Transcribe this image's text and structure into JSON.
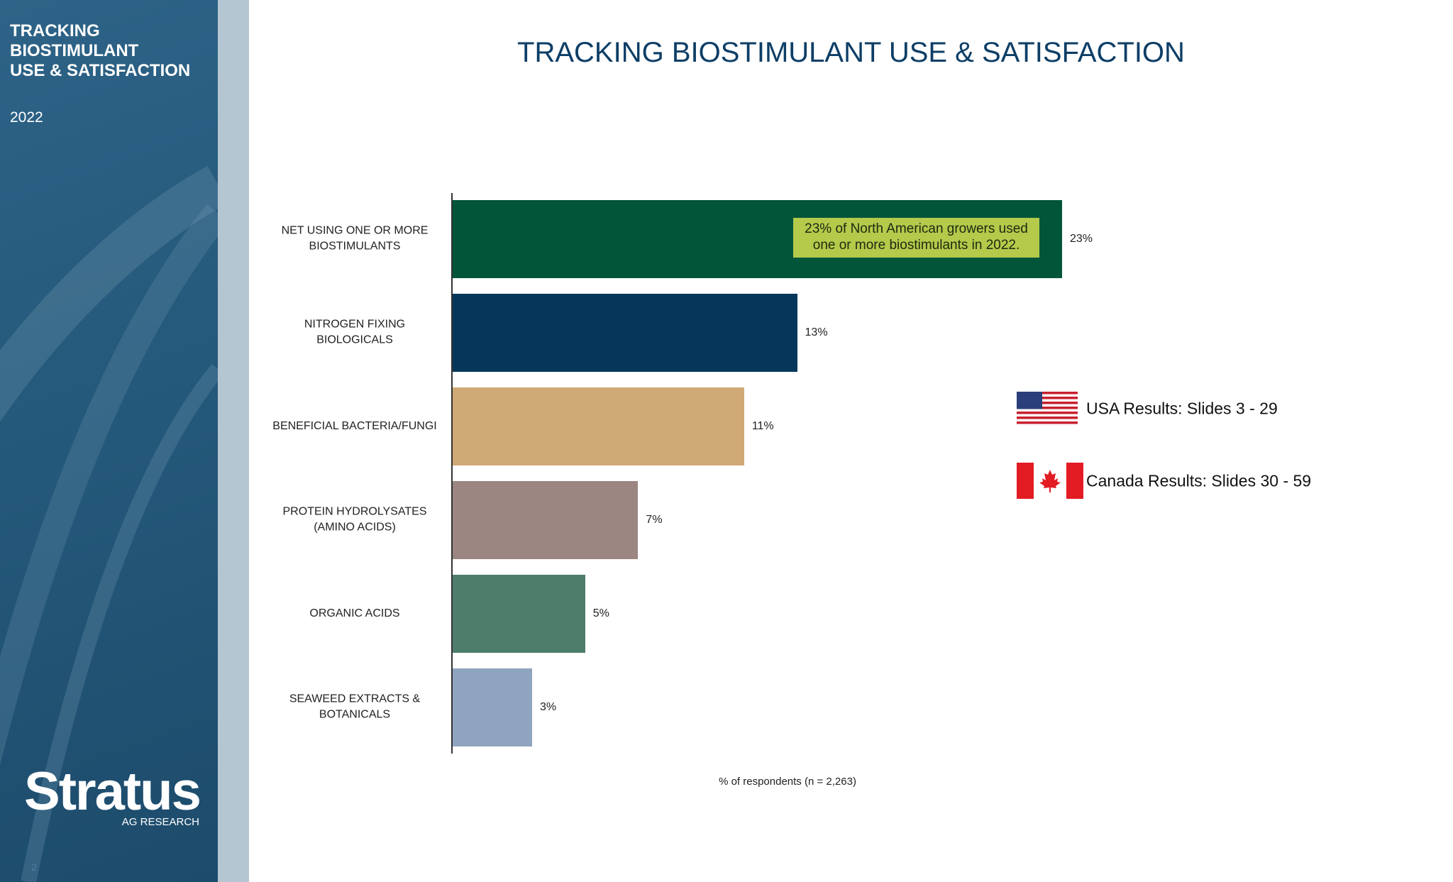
{
  "sidebar": {
    "title_lines": [
      "TRACKING",
      "BIOSTIMULANT",
      "USE & SATISFACTION"
    ],
    "year": "2022",
    "logo": "Stratus",
    "logo_sub": "AG RESEARCH",
    "page": "2"
  },
  "links": [
    "USA Results: Slides 3 - 29",
    "Canada Results: Slides 30 - 59"
  ],
  "chart_data": {
    "type": "bar",
    "orientation": "horizontal",
    "title": "TRACKING BIOSTIMULANT USE & SATISFACTION",
    "categories": [
      "NET USING ONE OR MORE BIOSTIMULANTS",
      "NITROGEN FIXING BIOLOGICALS",
      "BENEFICIAL BACTERIA/FUNGI",
      "PROTEIN HYDROLYSATES (AMINO ACIDS)",
      "ORGANIC ACIDS",
      "SEAWEED EXTRACTS & BOTANICALS"
    ],
    "values": [
      23,
      13,
      11,
      7,
      5,
      3
    ],
    "value_labels": [
      "23%",
      "13%",
      "11%",
      "7%",
      "5%",
      "3%"
    ],
    "colors": [
      "#03553a",
      "#05375a",
      "#cfa976",
      "#9b8682",
      "#4f7d6b",
      "#8fa4bf"
    ],
    "x_label": "% of respondents (n = 2,263)",
    "annotation": [
      "23% of North American growers used",
      "one or more biostimulants in 2022."
    ]
  }
}
